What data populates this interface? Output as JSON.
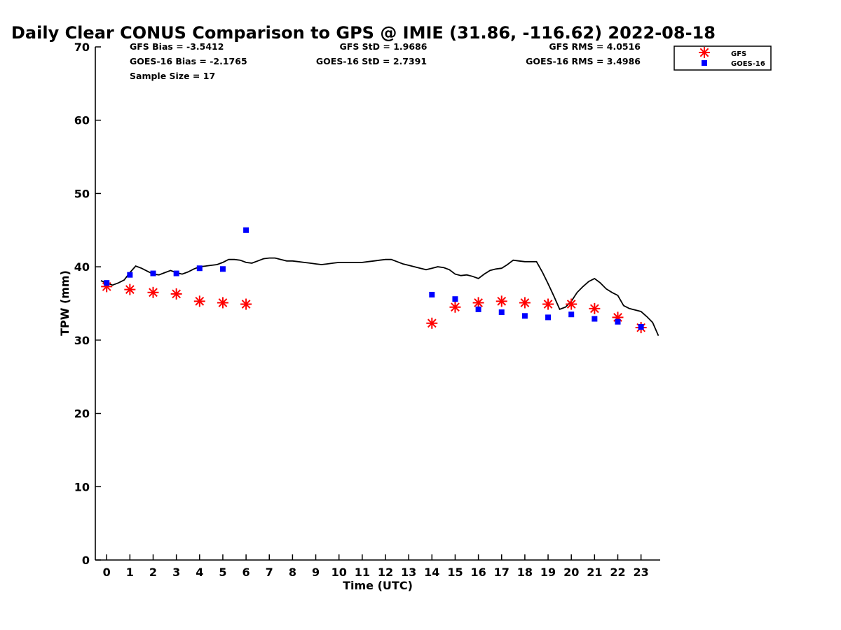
{
  "chart_data": {
    "type": "scatter",
    "title": "Daily Clear CONUS Comparison to GPS @ IMIE (31.86, -116.62) 2022-08-18",
    "xlabel": "Time (UTC)",
    "ylabel": "TPW (mm)",
    "xlim": [
      -0.5,
      23.75
    ],
    "ylim": [
      0,
      70
    ],
    "xticks": [
      0,
      1,
      2,
      3,
      4,
      5,
      6,
      7,
      8,
      9,
      10,
      11,
      12,
      13,
      14,
      15,
      16,
      17,
      18,
      19,
      20,
      21,
      22,
      23
    ],
    "yticks": [
      0,
      10,
      20,
      30,
      40,
      50,
      60,
      70
    ],
    "grid": false,
    "legend_placement": "top-right, outside plot",
    "stats": {
      "gfs_bias": "GFS Bias = -3.5412",
      "goes_bias": "GOES-16 Bias = -2.1765",
      "sample_size": "Sample Size = 17",
      "gfs_std": "GFS StD = 1.9686",
      "goes_std": "GOES-16 StD = 2.7391",
      "gfs_rms": "GFS RMS = 4.0516",
      "goes_rms": "GOES-16 RMS = 3.4986"
    },
    "series": [
      {
        "name": "GPS",
        "style": "line",
        "color": "#000000",
        "x": [
          -0.25,
          0,
          0.25,
          0.5,
          0.75,
          1,
          1.25,
          1.5,
          1.75,
          2,
          2.25,
          2.5,
          2.75,
          3,
          3.25,
          3.5,
          3.75,
          4,
          4.25,
          4.5,
          4.75,
          5,
          5.25,
          5.5,
          5.75,
          6,
          6.25,
          6.5,
          6.75,
          7,
          7.25,
          7.5,
          7.75,
          8,
          8.25,
          8.5,
          8.75,
          9,
          9.25,
          9.5,
          9.75,
          10,
          10.25,
          10.5,
          10.75,
          11,
          11.25,
          11.5,
          11.75,
          12,
          12.25,
          12.5,
          12.75,
          13,
          13.25,
          13.5,
          13.75,
          14,
          14.25,
          14.5,
          14.75,
          15,
          15.25,
          15.5,
          15.75,
          16,
          16.25,
          16.5,
          16.75,
          17,
          17.25,
          17.5,
          17.75,
          18,
          18.25,
          18.5,
          18.75,
          19,
          19.25,
          19.5,
          19.75,
          20,
          20.25,
          20.5,
          20.75,
          21,
          21.25,
          21.5,
          21.75,
          22,
          22.25,
          22.5,
          22.75,
          23,
          23.25,
          23.5,
          23.75
        ],
        "y": [
          38.1,
          37.8,
          37.5,
          37.8,
          38.2,
          39.2,
          40.1,
          39.8,
          39.4,
          39.0,
          38.9,
          39.2,
          39.5,
          39.2,
          39.0,
          39.3,
          39.7,
          40.0,
          40.1,
          40.2,
          40.3,
          40.6,
          41.0,
          41.0,
          40.9,
          40.6,
          40.5,
          40.8,
          41.1,
          41.2,
          41.2,
          41.0,
          40.8,
          40.8,
          40.7,
          40.6,
          40.5,
          40.4,
          40.3,
          40.4,
          40.5,
          40.6,
          40.6,
          40.6,
          40.6,
          40.6,
          40.7,
          40.8,
          40.9,
          41.0,
          41.0,
          40.7,
          40.4,
          40.2,
          40.0,
          39.8,
          39.6,
          39.8,
          40.0,
          39.9,
          39.6,
          39.0,
          38.8,
          38.9,
          38.7,
          38.4,
          39.0,
          39.5,
          39.7,
          39.8,
          40.3,
          40.9,
          40.8,
          40.7,
          40.7,
          40.7,
          39.3,
          37.7,
          36.0,
          34.2,
          34.5,
          35.3,
          36.5,
          37.3,
          38.0,
          38.4,
          37.8,
          37.0,
          36.5,
          36.1,
          34.7,
          34.3,
          34.1,
          33.9,
          33.2,
          32.4,
          30.6
        ]
      },
      {
        "name": "GFS",
        "style": "asterisk",
        "color": "#ff0000",
        "x": [
          0,
          1,
          2,
          3,
          4,
          5,
          6,
          14,
          15,
          16,
          17,
          18,
          19,
          20,
          21,
          22,
          23
        ],
        "y": [
          37.3,
          36.9,
          36.5,
          36.3,
          35.3,
          35.1,
          34.9,
          32.3,
          34.5,
          35.1,
          35.3,
          35.1,
          34.9,
          34.9,
          34.3,
          33.1,
          31.7
        ]
      },
      {
        "name": "GOES-16",
        "style": "square",
        "color": "#0000ff",
        "x": [
          0,
          1,
          2,
          3,
          4,
          5,
          6,
          14,
          15,
          16,
          17,
          18,
          19,
          20,
          21,
          22,
          23
        ],
        "y": [
          37.8,
          38.9,
          39.1,
          39.1,
          39.8,
          39.7,
          45.0,
          36.2,
          35.6,
          34.2,
          33.8,
          33.3,
          33.1,
          33.5,
          32.9,
          32.5,
          31.8
        ]
      }
    ],
    "legend": [
      "GFS",
      "GOES-16"
    ]
  }
}
